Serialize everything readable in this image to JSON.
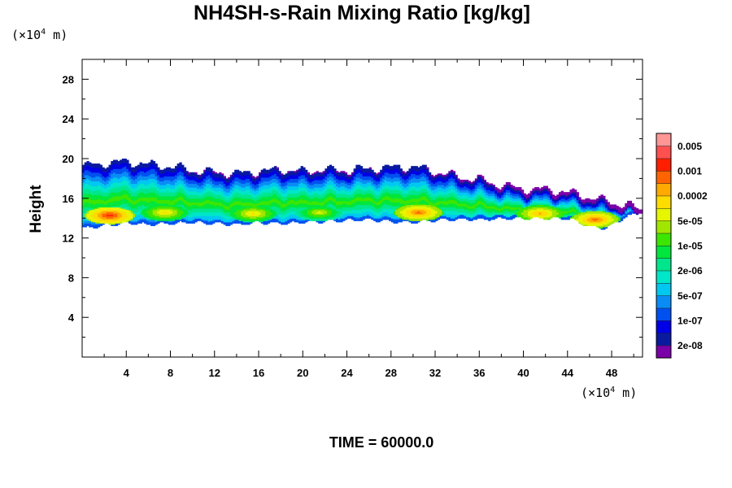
{
  "chart_data": {
    "type": "heatmap",
    "title": "NH4SH-s-Rain Mixing Ratio [kg/kg]",
    "ylabel": "Height",
    "x_unit_prefix": "(×10",
    "x_unit_exp": "4",
    "x_unit_suffix": " m)",
    "y_unit_prefix": "(×10",
    "y_unit_exp": "4",
    "y_unit_suffix": " m)",
    "xlim": [
      0,
      50.8
    ],
    "ylim": [
      0,
      30
    ],
    "x_ticks": [
      4,
      8,
      12,
      16,
      20,
      24,
      28,
      32,
      36,
      40,
      44,
      48
    ],
    "x_tick_labels": [
      "4",
      "8",
      "12",
      "16",
      "20",
      "24",
      "28",
      "32",
      "36",
      "40",
      "44",
      "48"
    ],
    "y_ticks": [
      4,
      8,
      12,
      16,
      20,
      24,
      28
    ],
    "y_tick_labels": [
      "4",
      "8",
      "12",
      "16",
      "20",
      "24",
      "28"
    ],
    "colorbar": {
      "colors": [
        "#7a00a8",
        "#0a1a9e",
        "#0000e6",
        "#0050f0",
        "#0a8cf5",
        "#00c8f0",
        "#00e6c8",
        "#00e68c",
        "#00e63c",
        "#3ce600",
        "#a0e600",
        "#e6f500",
        "#ffdc00",
        "#ffaa00",
        "#ff6400",
        "#ff1e00",
        "#ff5050",
        "#ff9696"
      ],
      "labels": [
        "2e-08",
        "1e-07",
        "5e-07",
        "2e-06",
        "1e-05",
        "5e-05",
        "0.0002",
        "0.001",
        "0.005"
      ]
    },
    "field": {
      "description_levels": "0 = no rain; 1..18 = colorbar bin index",
      "top_boundary": [
        [
          0,
          19.2
        ],
        [
          2,
          19.5
        ],
        [
          4,
          19.7
        ],
        [
          6,
          19.4
        ],
        [
          8,
          19.2
        ],
        [
          10,
          18.8
        ],
        [
          12,
          18.6
        ],
        [
          14,
          18.5
        ],
        [
          16,
          18.7
        ],
        [
          18,
          18.9
        ],
        [
          20,
          18.7
        ],
        [
          22,
          18.9
        ],
        [
          24,
          18.8
        ],
        [
          26,
          19.0
        ],
        [
          28,
          19.1
        ],
        [
          30,
          19.2
        ],
        [
          32,
          18.7
        ],
        [
          34,
          18.2
        ],
        [
          36,
          17.9
        ],
        [
          38,
          17.3
        ],
        [
          40,
          16.9
        ],
        [
          42,
          16.9
        ],
        [
          44,
          16.6
        ],
        [
          46,
          16.1
        ],
        [
          48,
          15.6
        ],
        [
          49.5,
          15.3
        ],
        [
          50.5,
          14.9
        ]
      ],
      "bottom_boundary": [
        [
          0,
          13.0
        ],
        [
          2,
          13.3
        ],
        [
          4,
          13.5
        ],
        [
          6,
          13.4
        ],
        [
          8,
          13.5
        ],
        [
          10,
          13.6
        ],
        [
          12,
          13.5
        ],
        [
          14,
          13.4
        ],
        [
          16,
          13.6
        ],
        [
          18,
          13.5
        ],
        [
          20,
          13.6
        ],
        [
          22,
          13.7
        ],
        [
          24,
          13.8
        ],
        [
          26,
          13.9
        ],
        [
          28,
          13.7
        ],
        [
          30,
          13.6
        ],
        [
          32,
          13.8
        ],
        [
          34,
          13.9
        ],
        [
          36,
          13.9
        ],
        [
          38,
          14.0
        ],
        [
          40,
          14.0
        ],
        [
          42,
          14.0
        ],
        [
          44,
          14.0
        ],
        [
          46,
          13.2
        ],
        [
          47.5,
          13.0
        ],
        [
          49,
          14.0
        ],
        [
          50.5,
          14.6
        ]
      ],
      "hotspots": [
        {
          "x": 2.5,
          "y": 14.3,
          "level": 16
        },
        {
          "x": 7.5,
          "y": 14.6,
          "level": 13
        },
        {
          "x": 15.5,
          "y": 14.5,
          "level": 13
        },
        {
          "x": 21.5,
          "y": 14.6,
          "level": 12
        },
        {
          "x": 30.5,
          "y": 14.6,
          "level": 15
        },
        {
          "x": 41.5,
          "y": 14.5,
          "level": 14
        },
        {
          "x": 46.5,
          "y": 13.9,
          "level": 15
        }
      ]
    }
  },
  "footer": {
    "time_label": "TIME = 60000.0"
  }
}
